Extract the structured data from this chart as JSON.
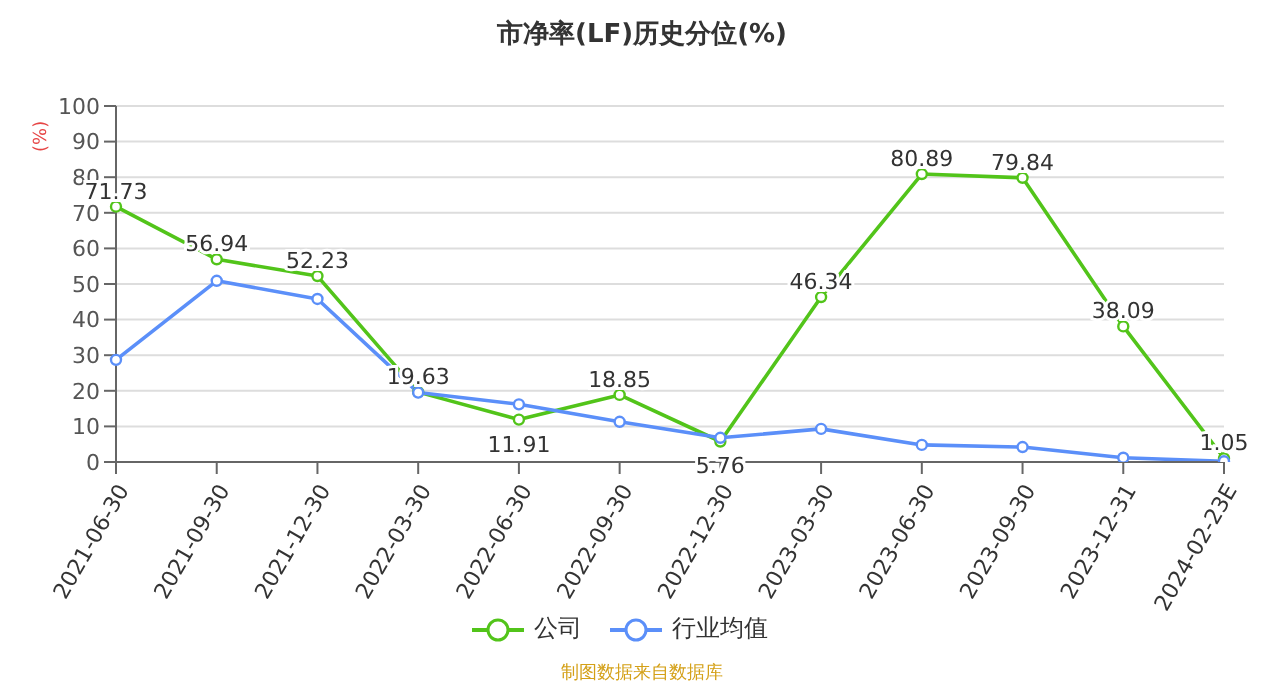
{
  "chart_data": {
    "type": "line",
    "title": "市净率(LF)历史分位(%)",
    "ylabel": "(%)",
    "categories": [
      "2021-06-30",
      "2021-09-30",
      "2021-12-30",
      "2022-03-30",
      "2022-06-30",
      "2022-09-30",
      "2022-12-30",
      "2023-03-30",
      "2023-06-30",
      "2023-09-30",
      "2023-12-31",
      "2024-02-23E"
    ],
    "series": [
      {
        "name": "公司",
        "color": "#52c41a",
        "values": [
          71.73,
          56.94,
          52.23,
          19.63,
          11.91,
          18.85,
          5.76,
          46.34,
          80.89,
          79.84,
          38.09,
          1.05
        ],
        "value_labels": [
          "71.73",
          "56.94",
          "52.23",
          "19.63",
          "11.91",
          "18.85",
          "5.76",
          "46.34",
          "80.89",
          "79.84",
          "38.09",
          "1.05"
        ]
      },
      {
        "name": "行业均值",
        "color": "#5b8ff9",
        "values": [
          28.7,
          50.9,
          45.8,
          19.5,
          16.2,
          11.3,
          6.8,
          9.3,
          4.8,
          4.2,
          1.2,
          0.2
        ]
      }
    ],
    "ylim": [
      0,
      100
    ],
    "yticks": [
      0,
      10,
      20,
      30,
      40,
      50,
      60,
      70,
      80,
      90,
      100
    ],
    "grid": "y",
    "legend": "bottom",
    "marker": "circle",
    "line_style": "solid",
    "annotations": [
      "制图数据来自数据库"
    ]
  }
}
